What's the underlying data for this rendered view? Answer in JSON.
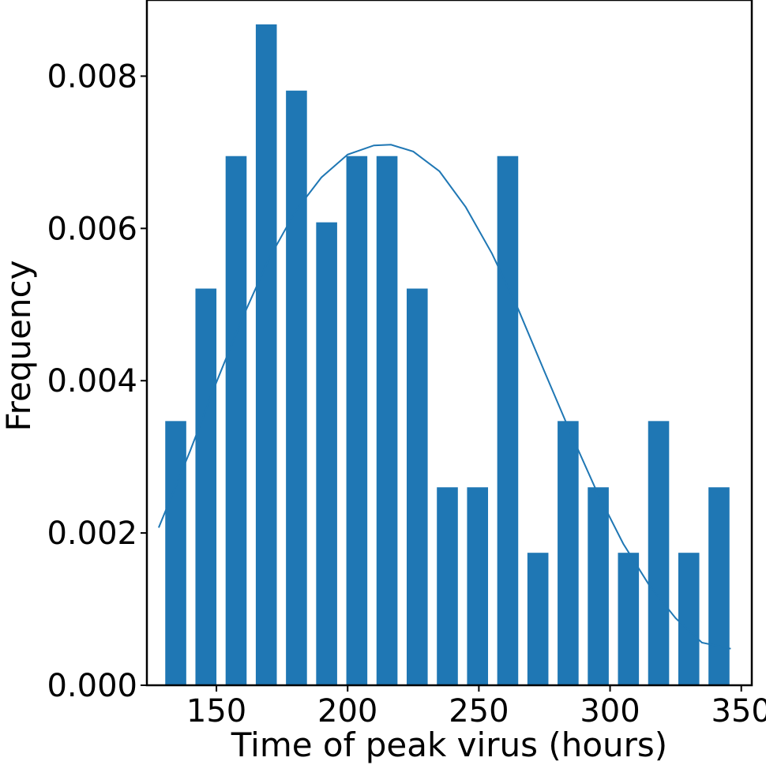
{
  "chart_data": {
    "type": "bar",
    "title": "",
    "xlabel": "Time of peak virus (hours)",
    "ylabel": "Frequency",
    "xlim": [
      123.5,
      354
    ],
    "ylim": [
      0,
      0.009
    ],
    "x_ticks": [
      150,
      200,
      250,
      300,
      350
    ],
    "x_tick_labels": [
      "150",
      "200",
      "250",
      "300",
      "350"
    ],
    "y_ticks": [
      0,
      0.002,
      0.004,
      0.006,
      0.008
    ],
    "y_tick_labels": [
      "0.000",
      "0.002",
      "0.004",
      "0.006",
      "0.008"
    ],
    "bar_width": 8,
    "bars": {
      "x": [
        134.5,
        146,
        157.5,
        169,
        180.5,
        192,
        203.5,
        215,
        226.5,
        238,
        249.5,
        261,
        272.5,
        284,
        295.5,
        307,
        318.5,
        330,
        341.5
      ],
      "values": [
        0.00347,
        0.00521,
        0.00695,
        0.00868,
        0.00781,
        0.00608,
        0.00695,
        0.00695,
        0.00521,
        0.0026,
        0.0026,
        0.00695,
        0.00174,
        0.00347,
        0.0026,
        0.00174,
        0.00347,
        0.00174,
        0.0026
      ]
    },
    "fit_curve": {
      "type": "line",
      "x": [
        128,
        140,
        150,
        160,
        170,
        180,
        190,
        200,
        210,
        216.5,
        225,
        235,
        245,
        255,
        265,
        275,
        285,
        295,
        305,
        315,
        325,
        335,
        346
      ],
      "values": [
        0.00207,
        0.00308,
        0.00398,
        0.00483,
        0.0056,
        0.00622,
        0.00667,
        0.00697,
        0.00709,
        0.0071,
        0.00701,
        0.00675,
        0.00628,
        0.00567,
        0.00494,
        0.00412,
        0.00331,
        0.00254,
        0.00186,
        0.00131,
        0.00088,
        0.00056,
        0.00048
      ]
    },
    "grid": false,
    "legend": "none",
    "colors": {
      "bars": "#1f77b4",
      "line": "#1f77b4",
      "axes": "#000000"
    }
  }
}
